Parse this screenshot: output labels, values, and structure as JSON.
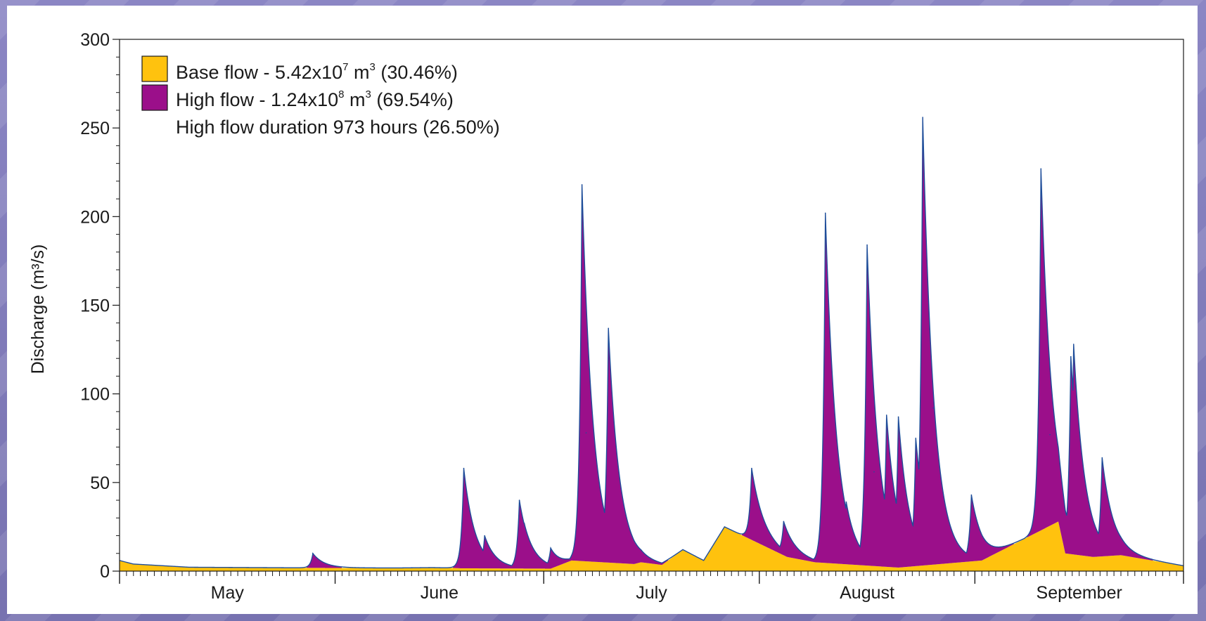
{
  "chart_data": {
    "type": "area",
    "ylabel": "Discharge (m³/s)",
    "ylim": [
      0,
      300
    ],
    "yticks": [
      0,
      50,
      100,
      150,
      200,
      250,
      300
    ],
    "yticks_text": [
      "0",
      "50",
      "100",
      "150",
      "200",
      "250",
      "300"
    ],
    "x_axis": {
      "start": "May 1",
      "end": "Sep 30",
      "months": [
        "May",
        "June",
        "July",
        "August",
        "September"
      ],
      "month_boundaries_day": [
        0,
        31,
        61,
        92,
        123,
        153
      ]
    },
    "legend": {
      "placement": "top-left",
      "items": [
        {
          "label": "Base flow - 5.42x10",
          "sup": "7",
          "tail": " m",
          "sup2": "3",
          "tail2": " (30.46%)",
          "color": "#ffc20e"
        },
        {
          "label": "High flow - 1.24x10",
          "sup": "8",
          "tail": " m",
          "sup2": "3",
          "tail2": " (69.54%)",
          "color": "#9b0f8a"
        }
      ],
      "note": "High flow duration 973 hours (26.50%)"
    },
    "colors": {
      "base": "#ffc20e",
      "high": "#9b0f8a",
      "line": "#1f4e9a"
    },
    "baseflow": {
      "x_day": [
        0,
        5,
        12,
        30,
        55,
        66,
        70,
        80,
        95,
        110,
        125,
        142,
        153
      ],
      "y": [
        5,
        2.5,
        2,
        1.8,
        1.5,
        1.5,
        6,
        10,
        7,
        4,
        25,
        18,
        3
      ]
    },
    "series": [
      {
        "name": "Base flow",
        "x_day": [
          0,
          2,
          10,
          30,
          40,
          45,
          48,
          49,
          62,
          65,
          74,
          75,
          78,
          81,
          84,
          87,
          96,
          100,
          112,
          124,
          135,
          136,
          140,
          144,
          153
        ],
        "y": [
          6,
          4,
          2.2,
          1.8,
          1.8,
          2,
          1.8,
          1.6,
          1.4,
          6,
          4,
          5,
          3.5,
          12,
          6,
          25,
          8,
          5,
          2,
          6,
          28,
          10,
          8,
          9,
          3
        ]
      },
      {
        "name": "High flow",
        "x_day": [
          27.8,
          49.5,
          52.5,
          57.5,
          58.2,
          62,
          66.5,
          67.1,
          70.3,
          90.9,
          95.5,
          101.5,
          104.5,
          107.5,
          108.5,
          110.3,
          112,
          114.5,
          115.5,
          117,
          122.5,
          132.5,
          133.8,
          136.8,
          137.2,
          141.3
        ],
        "y": [
          10,
          58,
          20,
          40,
          27,
          13,
          218,
          78,
          137,
          58,
          28,
          202,
          39,
          184,
          56,
          88,
          87,
          75,
          256,
          92,
          43,
          227,
          77,
          121,
          128,
          64
        ]
      }
    ]
  }
}
